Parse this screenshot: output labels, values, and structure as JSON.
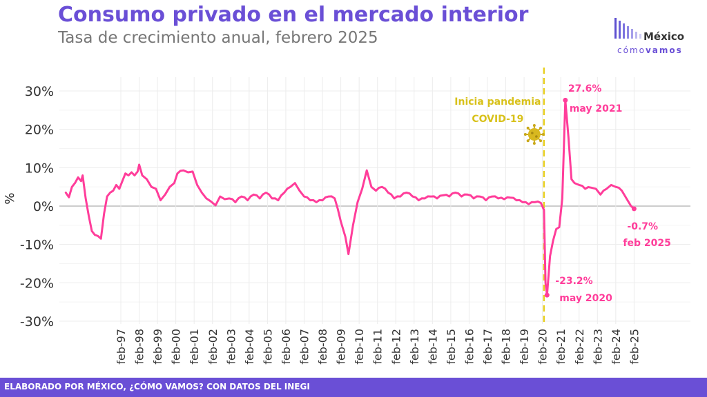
{
  "header": {
    "title": "Consumo privado en el mercado interior",
    "subtitle": "Tasa de crecimiento anual, febrero 2025"
  },
  "logo": {
    "name": "México",
    "tagline_light": "cómo",
    "tagline_bold": "vamos"
  },
  "footer": {
    "text": "ELABORADO POR MÉXICO, ¿CÓMO VAMOS? CON DATOS DEL INEGI"
  },
  "colors": {
    "title": "#6a4fd6",
    "series": "#ff3d9a",
    "pandemic_line": "#e8cf1f",
    "footer": "#6a4fd6"
  },
  "chart_data": {
    "type": "line",
    "ylabel": "%",
    "ylim": [
      -30,
      30
    ],
    "y_ticks": [
      {
        "value": 30,
        "label": "30%"
      },
      {
        "value": 20,
        "label": "20%"
      },
      {
        "value": 10,
        "label": "10%"
      },
      {
        "value": 0,
        "label": "0%"
      },
      {
        "value": -10,
        "label": "-10%"
      },
      {
        "value": -20,
        "label": "-20%"
      },
      {
        "value": -30,
        "label": "-30%"
      }
    ],
    "x_ticks": [
      "feb-97",
      "feb-98",
      "feb-99",
      "feb-00",
      "feb-01",
      "feb-02",
      "feb-03",
      "feb-04",
      "feb-05",
      "feb-06",
      "feb-07",
      "feb-08",
      "feb-09",
      "feb-10",
      "feb-11",
      "feb-12",
      "feb-13",
      "feb-14",
      "feb-15",
      "feb-16",
      "feb-17",
      "feb-18",
      "feb-19",
      "feb-20",
      "feb-21",
      "feb-22",
      "feb-23",
      "feb-24",
      "feb-25"
    ],
    "x_tick_years": [
      1997,
      1998,
      1999,
      2000,
      2001,
      2002,
      2003,
      2004,
      2005,
      2006,
      2007,
      2008,
      2009,
      2010,
      2011,
      2012,
      2013,
      2014,
      2015,
      2016,
      2017,
      2018,
      2019,
      2020,
      2021,
      2022,
      2023,
      2024,
      2025
    ],
    "grid": true,
    "series": [
      {
        "points": [
          [
            "1994-02",
            3.5
          ],
          [
            "1994-04",
            2.3
          ],
          [
            "1994-06",
            5.0
          ],
          [
            "1994-08",
            6.0
          ],
          [
            "1994-10",
            7.5
          ],
          [
            "1994-12",
            6.5
          ],
          [
            "1995-01",
            8.0
          ],
          [
            "1995-03",
            2.0
          ],
          [
            "1995-05",
            -2.5
          ],
          [
            "1995-07",
            -6.5
          ],
          [
            "1995-09",
            -7.5
          ],
          [
            "1995-11",
            -7.8
          ],
          [
            "1996-01",
            -8.5
          ],
          [
            "1996-03",
            -2.0
          ],
          [
            "1996-05",
            2.5
          ],
          [
            "1996-07",
            3.5
          ],
          [
            "1996-09",
            4.0
          ],
          [
            "1996-11",
            5.5
          ],
          [
            "1997-01",
            4.5
          ],
          [
            "1997-03",
            6.5
          ],
          [
            "1997-05",
            8.5
          ],
          [
            "1997-07",
            8.0
          ],
          [
            "1997-09",
            8.8
          ],
          [
            "1997-11",
            8.0
          ],
          [
            "1998-01",
            9.0
          ],
          [
            "1998-02",
            10.8
          ],
          [
            "1998-04",
            8.0
          ],
          [
            "1998-07",
            7.0
          ],
          [
            "1998-10",
            5.0
          ],
          [
            "1999-01",
            4.5
          ],
          [
            "1999-04",
            1.5
          ],
          [
            "1999-07",
            3.0
          ],
          [
            "1999-10",
            5.0
          ],
          [
            "2000-01",
            6.0
          ],
          [
            "2000-03",
            8.5
          ],
          [
            "2000-07",
            9.3
          ],
          [
            "2000-10",
            8.8
          ],
          [
            "2001-01",
            9.0
          ],
          [
            "2001-04",
            5.5
          ],
          [
            "2001-07",
            3.5
          ],
          [
            "2001-10",
            2.0
          ],
          [
            "2002-01",
            1.2
          ],
          [
            "2002-04",
            0.2
          ],
          [
            "2002-07",
            2.5
          ],
          [
            "2002-10",
            1.8
          ],
          [
            "2003-01",
            2.0
          ],
          [
            "2003-05",
            1.0
          ],
          [
            "2003-09",
            2.5
          ],
          [
            "2004-01",
            1.5
          ],
          [
            "2004-05",
            3.0
          ],
          [
            "2004-09",
            2.0
          ],
          [
            "2005-01",
            3.5
          ],
          [
            "2005-05",
            2.0
          ],
          [
            "2005-09",
            1.5
          ],
          [
            "2006-01",
            3.5
          ],
          [
            "2006-05",
            5.0
          ],
          [
            "2006-08",
            6.0
          ],
          [
            "2006-11",
            4.0
          ],
          [
            "2007-02",
            2.5
          ],
          [
            "2007-06",
            1.5
          ],
          [
            "2007-10",
            1.0
          ],
          [
            "2008-02",
            1.5
          ],
          [
            "2008-06",
            2.5
          ],
          [
            "2008-10",
            2.0
          ],
          [
            "2009-02",
            -4.0
          ],
          [
            "2009-05",
            -8.0
          ],
          [
            "2009-07",
            -12.5
          ],
          [
            "2009-10",
            -5.0
          ],
          [
            "2010-01",
            1.0
          ],
          [
            "2010-04",
            4.5
          ],
          [
            "2010-07",
            9.3
          ],
          [
            "2010-10",
            5.0
          ],
          [
            "2011-01",
            4.0
          ],
          [
            "2011-05",
            5.0
          ],
          [
            "2011-09",
            3.5
          ],
          [
            "2012-01",
            2.0
          ],
          [
            "2012-05",
            2.5
          ],
          [
            "2012-09",
            3.5
          ],
          [
            "2013-01",
            2.5
          ],
          [
            "2013-05",
            1.5
          ],
          [
            "2013-09",
            2.0
          ],
          [
            "2014-01",
            2.5
          ],
          [
            "2014-05",
            2.0
          ],
          [
            "2014-09",
            2.8
          ],
          [
            "2015-01",
            2.5
          ],
          [
            "2015-05",
            3.5
          ],
          [
            "2015-09",
            2.5
          ],
          [
            "2016-01",
            3.0
          ],
          [
            "2016-05",
            2.0
          ],
          [
            "2016-09",
            2.5
          ],
          [
            "2017-01",
            1.5
          ],
          [
            "2017-05",
            2.5
          ],
          [
            "2017-09",
            2.0
          ],
          [
            "2018-01",
            1.8
          ],
          [
            "2018-05",
            2.2
          ],
          [
            "2018-09",
            1.5
          ],
          [
            "2019-01",
            1.0
          ],
          [
            "2019-05",
            0.5
          ],
          [
            "2019-09",
            1.0
          ],
          [
            "2020-01",
            0.8
          ],
          [
            "2020-03",
            -1.0
          ],
          [
            "2020-04",
            -20.0
          ],
          [
            "2020-05",
            -23.2
          ],
          [
            "2020-07",
            -13.0
          ],
          [
            "2020-09",
            -9.0
          ],
          [
            "2020-11",
            -6.0
          ],
          [
            "2021-01",
            -5.5
          ],
          [
            "2021-03",
            2.0
          ],
          [
            "2021-05",
            27.6
          ],
          [
            "2021-07",
            18.0
          ],
          [
            "2021-09",
            7.0
          ],
          [
            "2021-11",
            6.0
          ],
          [
            "2022-02",
            5.5
          ],
          [
            "2022-06",
            4.5
          ],
          [
            "2022-10",
            4.8
          ],
          [
            "2023-01",
            4.5
          ],
          [
            "2023-04",
            3.0
          ],
          [
            "2023-08",
            4.5
          ],
          [
            "2023-11",
            5.5
          ],
          [
            "2024-02",
            5.0
          ],
          [
            "2024-06",
            4.0
          ],
          [
            "2024-09",
            2.0
          ],
          [
            "2024-12",
            0.0
          ],
          [
            "2025-02",
            -0.7
          ]
        ]
      }
    ],
    "annotations": {
      "pandemic": {
        "date": "2020-03",
        "line1": "Inicia pandemia",
        "line2": "COVID-19"
      },
      "max": {
        "date": "2021-05",
        "value": 27.6,
        "value_label": "27.6%",
        "date_label": "may 2021"
      },
      "min": {
        "date": "2020-05",
        "value": -23.2,
        "value_label": "-23.2%",
        "date_label": "may 2020"
      },
      "last": {
        "date": "2025-02",
        "value": -0.7,
        "value_label": "-0.7%",
        "date_label": "feb 2025"
      }
    }
  }
}
